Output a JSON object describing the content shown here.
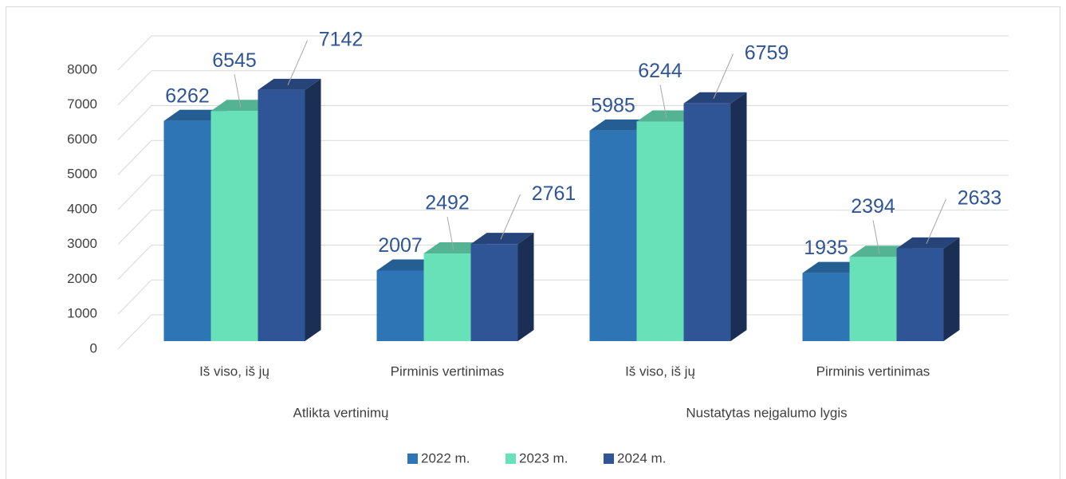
{
  "chart_data": {
    "type": "bar3d",
    "groups": [
      "Atlikta vertinimų",
      "Nustatytas neįgalumo lygis"
    ],
    "categories": [
      "Iš viso, iš jų",
      "Pirminis vertinimas",
      "Iš viso, iš jų",
      "Pirminis vertinimas"
    ],
    "series": [
      {
        "name": "2022 m.",
        "color": "#2e75b6",
        "values": [
          6262,
          2007,
          5985,
          1935
        ]
      },
      {
        "name": "2023 m.",
        "color": "#68e0b8",
        "values": [
          6545,
          2492,
          6244,
          2394
        ]
      },
      {
        "name": "2024 m.",
        "color": "#2f5597",
        "values": [
          7142,
          2761,
          6759,
          2633
        ]
      }
    ],
    "ylim": [
      0,
      8000
    ],
    "yticks": [
      0,
      1000,
      2000,
      3000,
      4000,
      5000,
      6000,
      7000,
      8000
    ],
    "grid": true,
    "legend": "bottom"
  }
}
